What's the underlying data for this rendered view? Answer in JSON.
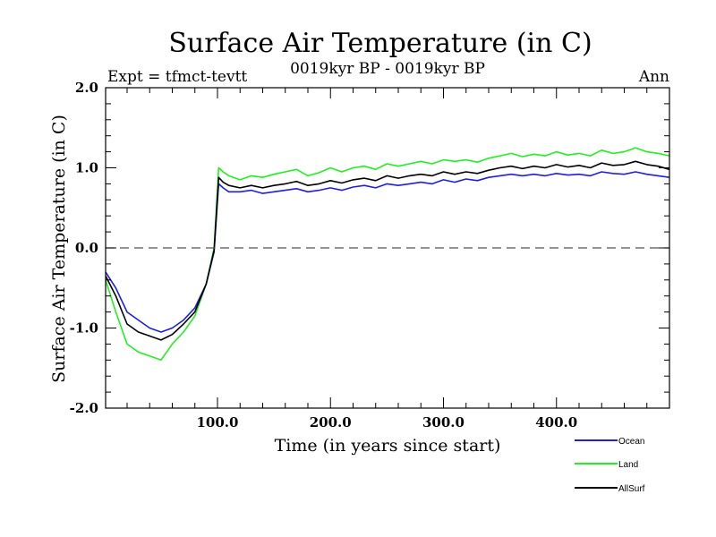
{
  "chart_data": {
    "type": "line",
    "title": "Surface Air Temperature (in C)",
    "subtitle": "0019kyr BP - 0019kyr BP",
    "left_label": "Expt = tfmct-tevtt",
    "right_label": "Ann",
    "xlabel": "Time (in years since start)",
    "ylabel": "Surface Air Temperature (in C)",
    "xlim": [
      1,
      500
    ],
    "ylim": [
      -2.0,
      2.0
    ],
    "x_ticks": [
      100,
      200,
      300,
      400
    ],
    "x_tick_labels": [
      "100.0",
      "200.0",
      "300.0",
      "400.0"
    ],
    "y_ticks": [
      -2.0,
      -1.0,
      0.0,
      1.0,
      2.0
    ],
    "y_tick_labels": [
      "-2.0",
      "-1.0",
      "0.0",
      "1.0",
      "2.0"
    ],
    "reference_line": 0.0,
    "grid": false,
    "legend_position": "bottom-right",
    "x": [
      1,
      10,
      20,
      30,
      40,
      50,
      60,
      70,
      80,
      90,
      97,
      101,
      105,
      110,
      120,
      130,
      140,
      150,
      160,
      170,
      180,
      190,
      200,
      210,
      220,
      230,
      240,
      250,
      260,
      270,
      280,
      290,
      300,
      310,
      320,
      330,
      340,
      350,
      360,
      370,
      380,
      390,
      400,
      410,
      420,
      430,
      440,
      450,
      460,
      470,
      480,
      490,
      500
    ],
    "series": [
      {
        "name": "Ocean",
        "color": "#1f1fe0",
        "values": [
          -0.3,
          -0.5,
          -0.8,
          -0.9,
          -1.0,
          -1.05,
          -1.0,
          -0.9,
          -0.75,
          -0.45,
          -0.05,
          0.8,
          0.75,
          0.7,
          0.7,
          0.72,
          0.68,
          0.7,
          0.72,
          0.74,
          0.7,
          0.72,
          0.75,
          0.72,
          0.76,
          0.78,
          0.75,
          0.8,
          0.78,
          0.8,
          0.82,
          0.8,
          0.85,
          0.82,
          0.86,
          0.84,
          0.88,
          0.9,
          0.92,
          0.9,
          0.92,
          0.9,
          0.93,
          0.91,
          0.92,
          0.9,
          0.95,
          0.93,
          0.92,
          0.95,
          0.92,
          0.9,
          0.88
        ]
      },
      {
        "name": "Land",
        "color": "#22ee22",
        "values": [
          -0.4,
          -0.8,
          -1.2,
          -1.3,
          -1.35,
          -1.4,
          -1.2,
          -1.05,
          -0.85,
          -0.45,
          0.0,
          1.0,
          0.95,
          0.9,
          0.85,
          0.9,
          0.88,
          0.92,
          0.95,
          0.98,
          0.9,
          0.94,
          1.0,
          0.95,
          1.0,
          1.02,
          0.98,
          1.05,
          1.02,
          1.05,
          1.08,
          1.05,
          1.1,
          1.08,
          1.1,
          1.07,
          1.12,
          1.15,
          1.18,
          1.14,
          1.17,
          1.15,
          1.2,
          1.16,
          1.18,
          1.15,
          1.22,
          1.18,
          1.2,
          1.25,
          1.2,
          1.18,
          1.15
        ]
      },
      {
        "name": "AllSurf",
        "color": "#000000",
        "values": [
          -0.35,
          -0.6,
          -0.95,
          -1.05,
          -1.1,
          -1.15,
          -1.08,
          -0.95,
          -0.8,
          -0.45,
          -0.03,
          0.88,
          0.82,
          0.78,
          0.75,
          0.78,
          0.75,
          0.78,
          0.8,
          0.83,
          0.78,
          0.8,
          0.84,
          0.81,
          0.85,
          0.87,
          0.84,
          0.9,
          0.87,
          0.9,
          0.92,
          0.9,
          0.95,
          0.92,
          0.95,
          0.93,
          0.97,
          1.0,
          1.02,
          0.99,
          1.02,
          1.0,
          1.04,
          1.01,
          1.03,
          1.0,
          1.06,
          1.03,
          1.04,
          1.08,
          1.04,
          1.02,
          0.98
        ]
      }
    ]
  }
}
